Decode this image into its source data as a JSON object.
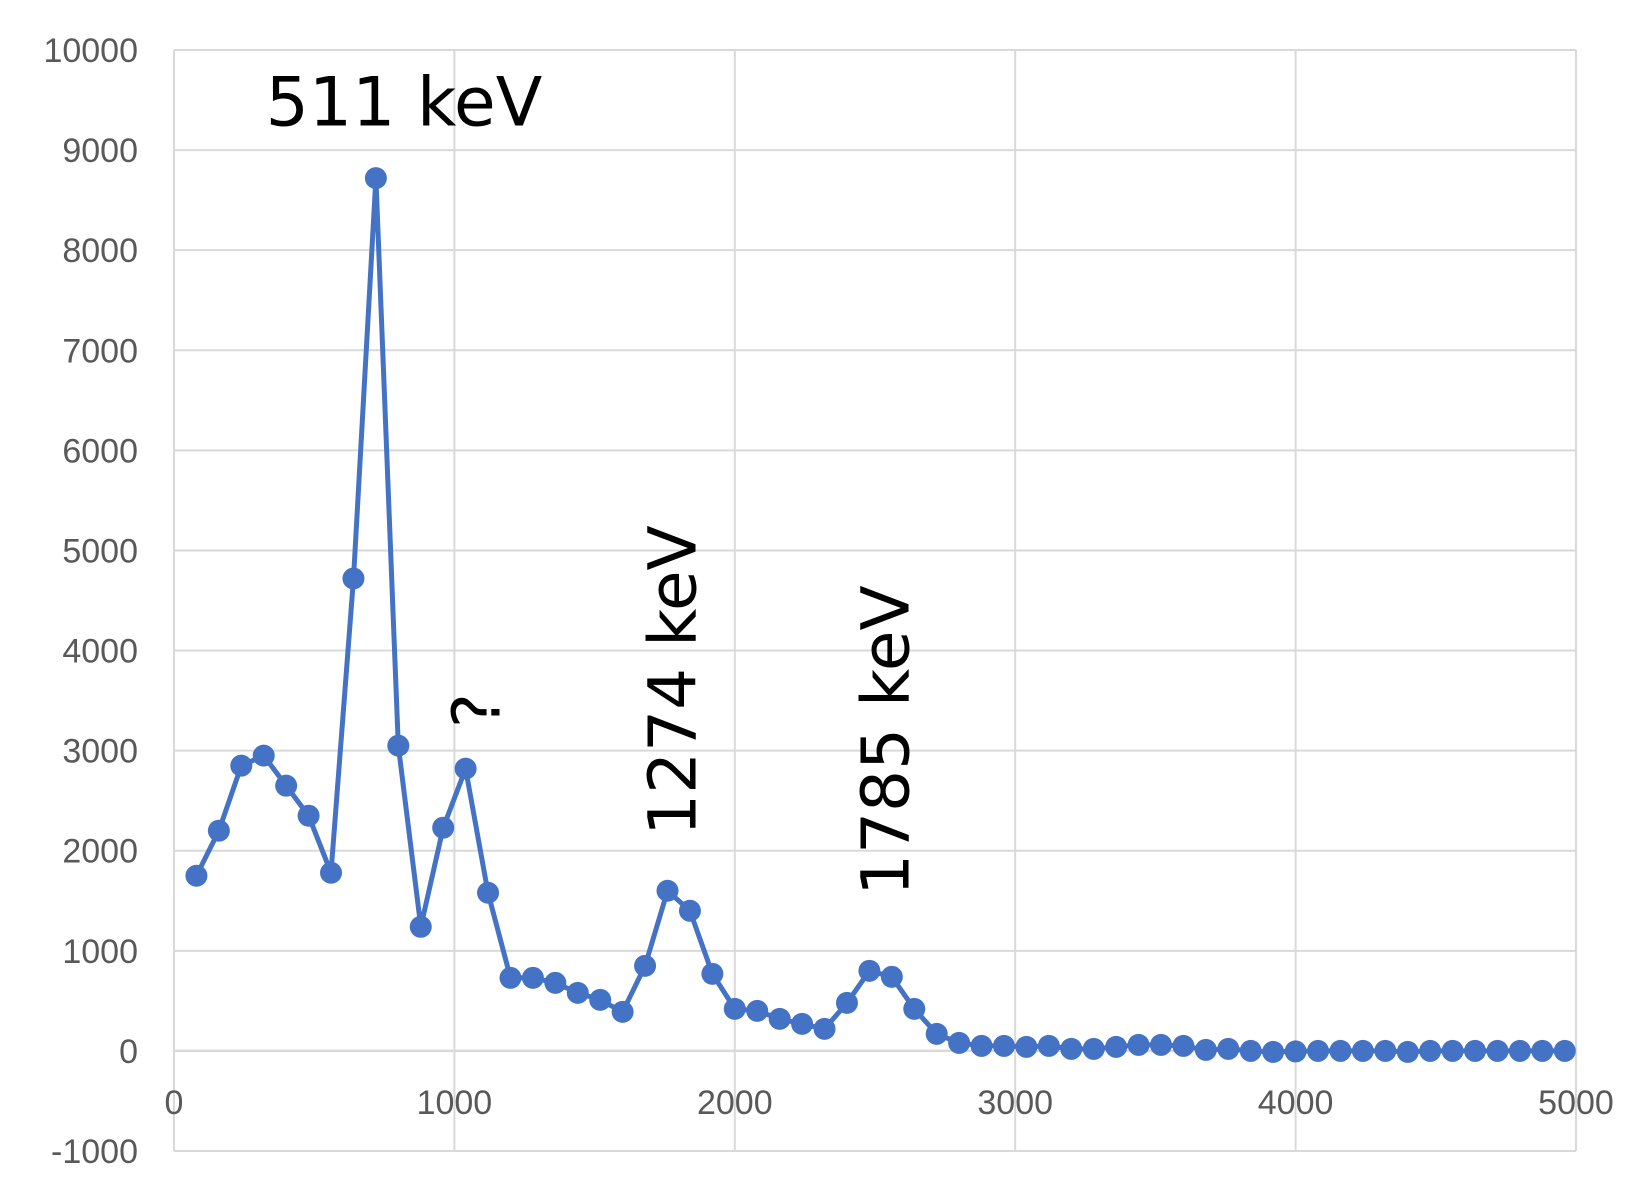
{
  "chart_data": {
    "type": "scatter",
    "title": "",
    "xlabel": "",
    "ylabel": "",
    "xlim": [
      0,
      5000
    ],
    "ylim": [
      -1000,
      10000
    ],
    "x_ticks": [
      0,
      1000,
      2000,
      3000,
      4000,
      5000
    ],
    "y_ticks": [
      -1000,
      0,
      1000,
      2000,
      3000,
      4000,
      5000,
      6000,
      7000,
      8000,
      9000,
      10000
    ],
    "grid": true,
    "legend": "none",
    "series_color": "#4472C4",
    "grid_color": "#D9D9D9",
    "series": [
      {
        "x": [
          80,
          160,
          240,
          320,
          400,
          480,
          560,
          640,
          720,
          800,
          880,
          960,
          1040,
          1120,
          1200,
          1280,
          1360,
          1440,
          1520,
          1600,
          1680,
          1760,
          1840,
          1920,
          2000,
          2080,
          2160,
          2240,
          2320,
          2400,
          2480,
          2560,
          2640,
          2720,
          2800,
          2880,
          2960,
          3040,
          3120,
          3200,
          3280,
          3360,
          3440,
          3520,
          3600,
          3680,
          3760,
          3840,
          3920,
          4000,
          4080,
          4160,
          4240,
          4320,
          4400,
          4480,
          4560,
          4640,
          4720,
          4800,
          4880,
          4960
        ],
        "y": [
          1750,
          2200,
          2850,
          2950,
          2650,
          2350,
          1780,
          4720,
          8720,
          3050,
          1240,
          2230,
          2820,
          1580,
          730,
          730,
          680,
          580,
          510,
          390,
          850,
          1600,
          1400,
          770,
          420,
          400,
          320,
          270,
          220,
          480,
          800,
          740,
          420,
          170,
          80,
          50,
          50,
          40,
          50,
          20,
          20,
          40,
          60,
          60,
          50,
          10,
          20,
          0,
          -10,
          -5,
          0,
          0,
          0,
          0,
          -10,
          0,
          0,
          0,
          0,
          0,
          0,
          0
        ]
      }
    ],
    "annotations": [
      {
        "text": "511 keV",
        "x": 820,
        "y": 9470,
        "orientation": "horizontal"
      },
      {
        "text": "?",
        "x": 1080,
        "y": 3400,
        "orientation": "vertical"
      },
      {
        "text": "1274 keV",
        "x": 1780,
        "y": 3700,
        "orientation": "vertical"
      },
      {
        "text": "1785 keV",
        "x": 2540,
        "y": 3100,
        "orientation": "vertical"
      }
    ]
  }
}
